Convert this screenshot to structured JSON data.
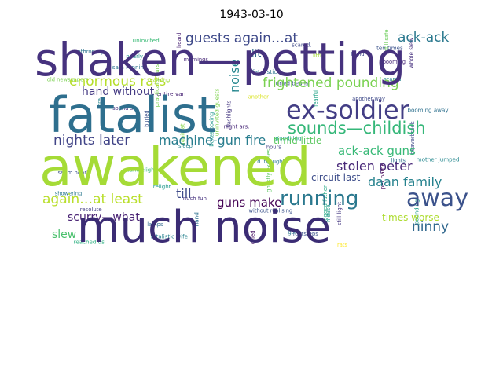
{
  "chart_data": {
    "type": "wordcloud",
    "title": "1943-03-10",
    "background": "#ffffff",
    "palette": "viridis",
    "words": [
      {
        "text": "shaken—petting",
        "weight": 1.0,
        "color": "#46327e"
      },
      {
        "text": "awakened",
        "weight": 0.98,
        "color": "#a5db36"
      },
      {
        "text": "much noise",
        "weight": 0.92,
        "color": "#3b2c74"
      },
      {
        "text": "fatalist",
        "weight": 0.85,
        "color": "#2e6f8e"
      },
      {
        "text": "ex-soldier",
        "weight": 0.55,
        "color": "#433e85"
      },
      {
        "text": "sounds—childish",
        "weight": 0.38,
        "color": "#35b779"
      },
      {
        "text": "running",
        "weight": 0.36,
        "color": "#2a788e"
      },
      {
        "text": "away",
        "weight": 0.34,
        "color": "#3b528b"
      },
      {
        "text": "frightened pounding",
        "weight": 0.28,
        "color": "#7ad151"
      },
      {
        "text": "enormous rats",
        "weight": 0.27,
        "color": "#b5de2b"
      },
      {
        "text": "guests again…at",
        "weight": 0.27,
        "color": "#3e4989"
      },
      {
        "text": "ack-ack",
        "weight": 0.26,
        "color": "#2a788e"
      },
      {
        "text": "nights later",
        "weight": 0.25,
        "color": "#414487"
      },
      {
        "text": "machine-gun fire",
        "weight": 0.25,
        "color": "#287d8e"
      },
      {
        "text": "again…at least",
        "weight": 0.24,
        "color": "#b8de29"
      },
      {
        "text": "daan family",
        "weight": 0.23,
        "color": "#26828e"
      },
      {
        "text": "stolen peter",
        "weight": 0.23,
        "color": "#482878"
      },
      {
        "text": "ack-ack guns",
        "weight": 0.22,
        "color": "#38b977"
      },
      {
        "text": "guns make",
        "weight": 0.22,
        "color": "#440154"
      },
      {
        "text": "ninny",
        "weight": 0.22,
        "color": "#31688e"
      },
      {
        "text": "noise",
        "weight": 0.22,
        "color": "#24868e"
      },
      {
        "text": "till",
        "weight": 0.21,
        "color": "#3e4a89"
      },
      {
        "text": "scurry—what",
        "weight": 0.19,
        "color": "#482173"
      },
      {
        "text": "slew",
        "weight": 0.19,
        "color": "#4ac16d"
      },
      {
        "text": "hand without",
        "weight": 0.18,
        "color": "#443a83"
      },
      {
        "text": "timid little",
        "weight": 0.17,
        "color": "#5ec962"
      },
      {
        "text": "circuit last",
        "weight": 0.16,
        "color": "#3d4d8a"
      },
      {
        "text": "times worse",
        "weight": 0.16,
        "color": "#addc30"
      },
      {
        "text": "lit",
        "weight": 0.16,
        "color": "#31688e"
      },
      {
        "text": "fatalistic",
        "weight": 0.08,
        "color": "#2c728e"
      },
      {
        "text": "uninvited guests",
        "weight": 0.07,
        "color": "#7fd34e"
      },
      {
        "text": "uninvited",
        "weight": 0.07,
        "color": "#3aba76"
      },
      {
        "text": "entire van",
        "weight": 0.07,
        "color": "#482475"
      },
      {
        "text": "hand",
        "weight": 0.07,
        "color": "#2d708e"
      },
      {
        "text": "relight",
        "weight": 0.06,
        "color": "#1f988b"
      },
      {
        "text": "reached us",
        "weight": 0.06,
        "color": "#29af7f"
      },
      {
        "text": "still light",
        "weight": 0.06,
        "color": "#453781"
      },
      {
        "text": "booming away",
        "weight": 0.06,
        "color": "#2d708e"
      },
      {
        "text": "ten times",
        "weight": 0.06,
        "color": "#3b528b"
      },
      {
        "text": "pet name",
        "weight": 0.06,
        "color": "#440154"
      },
      {
        "text": "dried beans",
        "weight": 0.06,
        "color": "#3b528b"
      },
      {
        "text": "sam running",
        "weight": 0.06,
        "color": "#2c728e"
      },
      {
        "text": "whole slew",
        "weight": 0.06,
        "color": "#46307e"
      },
      {
        "text": "mother jumped",
        "weight": 0.06,
        "color": "#24878e"
      },
      {
        "text": "fatalistic wife",
        "weight": 0.06,
        "color": "#26828e"
      },
      {
        "text": "practically burst",
        "weight": 0.06,
        "color": "#7ad151"
      },
      {
        "text": "nearly",
        "weight": 0.05,
        "color": "#21918c"
      },
      {
        "text": "seem nearly",
        "weight": 0.05,
        "color": "#3b528b"
      },
      {
        "text": "again.at",
        "weight": 0.05,
        "color": "#86d549"
      },
      {
        "text": "night ars.",
        "weight": 0.05,
        "color": "#482878"
      },
      {
        "text": "much fun",
        "weight": 0.05,
        "color": "#46317e"
      },
      {
        "text": "begged father",
        "weight": 0.05,
        "color": "#22a884"
      },
      {
        "text": "anthropory",
        "weight": 0.05,
        "color": "#2c728e"
      },
      {
        "text": "resolute",
        "weight": 0.05,
        "color": "#433e85"
      },
      {
        "text": "dried",
        "weight": 0.05,
        "color": "#471164"
      },
      {
        "text": "scared.",
        "weight": 0.05,
        "color": "#3e4989"
      },
      {
        "text": "candlelight",
        "weight": 0.05,
        "color": "#35b779"
      },
      {
        "text": "ghostly excuses",
        "weight": 0.05,
        "color": "#5ec962"
      },
      {
        "text": "grumbling",
        "weight": 0.05,
        "color": "#20a386"
      },
      {
        "text": "footsteps",
        "weight": 0.05,
        "color": "#3b528b"
      },
      {
        "text": "pounding",
        "weight": 0.05,
        "color": "#1f9e89"
      },
      {
        "text": "another way",
        "weight": 0.04,
        "color": "#3e4a89"
      },
      {
        "text": "d. thought",
        "weight": 0.04,
        "color": "#2a788e"
      },
      {
        "text": "heard",
        "weight": 0.04,
        "color": "#482173"
      },
      {
        "text": "sleep",
        "weight": 0.04,
        "color": "#25848e"
      },
      {
        "text": "rats",
        "weight": 0.04,
        "color": "#fde725"
      },
      {
        "text": "beaverbrook",
        "weight": 0.04,
        "color": "#3e4989"
      },
      {
        "text": "without realising",
        "weight": 0.04,
        "color": "#3b528b"
      },
      {
        "text": "realising",
        "weight": 0.04,
        "color": "#9fda3a"
      },
      {
        "text": "boxes boxing",
        "weight": 0.04,
        "color": "#1f988b"
      },
      {
        "text": "mornings",
        "weight": 0.04,
        "color": "#482878"
      },
      {
        "text": "showering",
        "weight": 0.04,
        "color": "#2a788e"
      },
      {
        "text": "still safe",
        "weight": 0.04,
        "color": "#6ccd5a"
      },
      {
        "text": "hours",
        "weight": 0.04,
        "color": "#414487"
      },
      {
        "text": "another",
        "weight": 0.04,
        "color": "#d8e219"
      },
      {
        "text": "buried",
        "weight": 0.04,
        "color": "#3b528b"
      },
      {
        "text": "scared",
        "weight": 0.04,
        "color": "#25848e"
      },
      {
        "text": "sound sc.",
        "weight": 0.04,
        "color": "#46337f"
      },
      {
        "text": "fearful",
        "weight": 0.04,
        "color": "#20a386"
      },
      {
        "text": "lights",
        "weight": 0.04,
        "color": "#2d708e"
      },
      {
        "text": "old newspapers",
        "weight": 0.04,
        "color": "#7ad151"
      },
      {
        "text": "flashlights",
        "weight": 0.04,
        "color": "#453781"
      },
      {
        "text": "guns",
        "weight": 0.04,
        "color": "#2c728e"
      },
      {
        "text": "booming",
        "weight": 0.04,
        "color": "#482878"
      },
      {
        "text": "mouse",
        "weight": 0.04,
        "color": "#1f988b"
      },
      {
        "text": "little",
        "weight": 0.04,
        "color": "#a5db36"
      },
      {
        "text": "timid",
        "weight": 0.04,
        "color": "#3e4989"
      },
      {
        "text": "fire",
        "weight": 0.04,
        "color": "#24868e"
      },
      {
        "text": "lamps",
        "weight": 0.04,
        "color": "#31688e"
      }
    ]
  }
}
